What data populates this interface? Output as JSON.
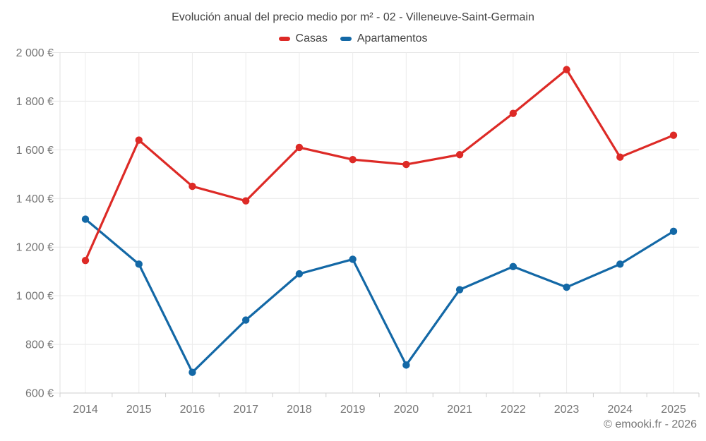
{
  "title": "Evolución anual del precio medio por m² - 02 - Villeneuve-Saint-Germain",
  "footer": "© emooki.fr - 2026",
  "chart_data": {
    "type": "line",
    "title": "Evolución anual del precio medio por m² - 02 - Villeneuve-Saint-Germain",
    "categories": [
      2014,
      2015,
      2016,
      2017,
      2018,
      2019,
      2020,
      2021,
      2022,
      2023,
      2024,
      2025
    ],
    "series": [
      {
        "name": "Casas",
        "color": "#dd2a26",
        "values": [
          1145,
          1640,
          1450,
          1390,
          1610,
          1560,
          1540,
          1580,
          1750,
          1930,
          1570,
          1660
        ]
      },
      {
        "name": "Apartamentos",
        "color": "#1368a6",
        "values": [
          1315,
          1130,
          685,
          900,
          1090,
          1150,
          715,
          1025,
          1120,
          1035,
          1130,
          1265
        ]
      }
    ],
    "ylim": [
      600,
      2000
    ],
    "y_ticks": [
      {
        "value": 600,
        "label": "600 €"
      },
      {
        "value": 800,
        "label": "800 €"
      },
      {
        "value": 1000,
        "label": "1 000 €"
      },
      {
        "value": 1200,
        "label": "1 200 €"
      },
      {
        "value": 1400,
        "label": "1 400 €"
      },
      {
        "value": 1600,
        "label": "1 600 €"
      },
      {
        "value": 1800,
        "label": "1 800 €"
      },
      {
        "value": 2000,
        "label": "2 000 €"
      }
    ],
    "xlabel": "",
    "ylabel": "",
    "grid": true,
    "legend_position": "top"
  }
}
